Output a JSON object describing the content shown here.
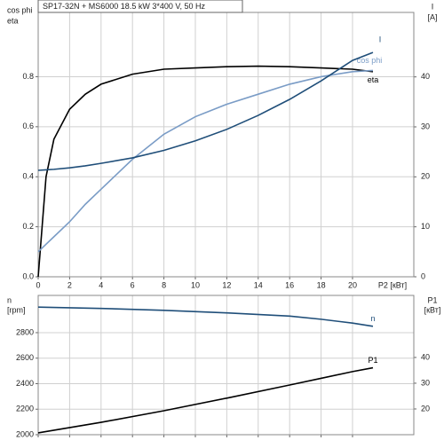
{
  "chart_data": [
    {
      "type": "line",
      "title": "SP17-32N + MS6000   18.5 kW   3*400 V, 50 Hz",
      "xlabel": "P2 [кВт]",
      "y_axis_labels": [
        "cos phi",
        "eta"
      ],
      "y2_axis_labels": [
        "I",
        "[A]"
      ],
      "x": [
        0,
        0.5,
        1,
        2,
        3,
        4,
        6,
        8,
        10,
        12,
        14,
        16,
        18,
        20,
        21.3
      ],
      "xlim": [
        0,
        23.9
      ],
      "xticks": [
        0,
        2,
        4,
        6,
        8,
        10,
        12,
        14,
        16,
        18,
        20
      ],
      "ylim": [
        0,
        1.057
      ],
      "yticks": [
        {
          "value": 0,
          "label": "0.0"
        },
        {
          "value": 0.2,
          "label": "0.2"
        },
        {
          "value": 0.4,
          "label": "0.4"
        },
        {
          "value": 0.6,
          "label": "0.6"
        },
        {
          "value": 0.8,
          "label": "0.8"
        }
      ],
      "y2lim": [
        0,
        52.9
      ],
      "y2ticks": [
        0,
        10,
        20,
        30,
        40
      ],
      "grid": true,
      "series": [
        {
          "name": "eta",
          "color": "#000000",
          "values": [
            0,
            0.4,
            0.55,
            0.67,
            0.73,
            0.77,
            0.81,
            0.83,
            0.835,
            0.84,
            0.842,
            0.84,
            0.835,
            0.83,
            0.82
          ]
        },
        {
          "name": "cos phi",
          "color": "#7a9cc6",
          "values": [
            0.1,
            0.13,
            0.16,
            0.22,
            0.29,
            0.35,
            0.47,
            0.57,
            0.64,
            0.69,
            0.73,
            0.77,
            0.8,
            0.82,
            0.825
          ]
        },
        {
          "name": "I",
          "color": "#1f4e79",
          "axis": "y2",
          "values": [
            21.3,
            21.4,
            21.5,
            21.8,
            22.2,
            22.7,
            23.8,
            25.3,
            27.2,
            29.5,
            32.3,
            35.5,
            39.2,
            43.3,
            44.9
          ]
        }
      ]
    },
    {
      "type": "line",
      "y_axis_labels": [
        "n",
        "[rpm]"
      ],
      "y2_axis_labels": [
        "P1",
        "[кВт]"
      ],
      "x": [
        0,
        4,
        8,
        12,
        16,
        18,
        20,
        21.3
      ],
      "xlim": [
        0,
        23.9
      ],
      "ylim": [
        2000,
        3092
      ],
      "yticks": [
        2000,
        2200,
        2400,
        2600,
        2800
      ],
      "y2lim": [
        10,
        64.1
      ],
      "y2ticks": [
        20,
        30,
        40
      ],
      "grid": true,
      "series": [
        {
          "name": "n",
          "color": "#1f4e79",
          "values": [
            3000,
            2990,
            2975,
            2955,
            2930,
            2905,
            2875,
            2850
          ]
        },
        {
          "name": "P1",
          "color": "#000000",
          "axis": "y2",
          "values": [
            10.7,
            14.8,
            19.3,
            24.2,
            29.3,
            31.9,
            34.5,
            36
          ]
        }
      ]
    }
  ]
}
